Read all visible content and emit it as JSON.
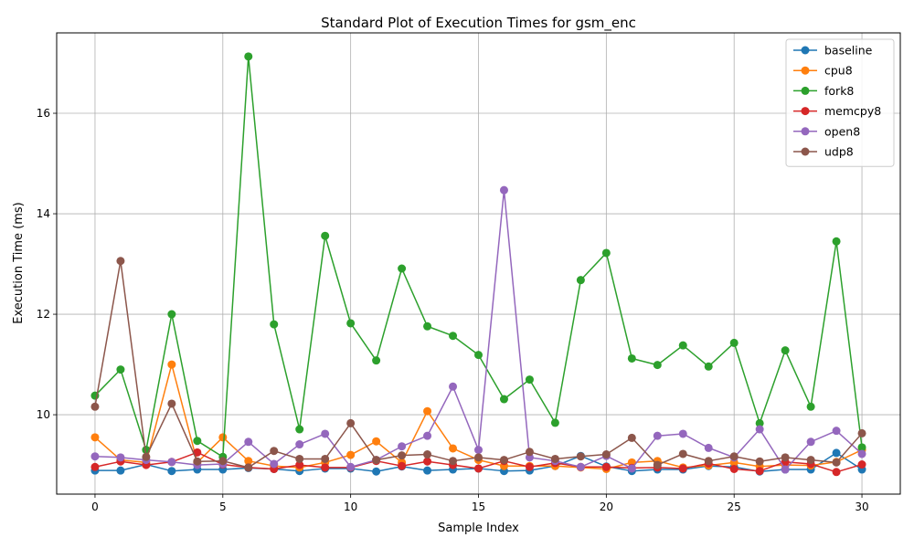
{
  "chart_data": {
    "type": "line",
    "title": "Standard Plot of Execution Times for gsm_enc",
    "xlabel": "Sample Index",
    "ylabel": "Execution Time (ms)",
    "xlim": [
      -1.5,
      31.5
    ],
    "ylim": [
      8.42,
      17.6
    ],
    "xticks": [
      0,
      5,
      10,
      15,
      20,
      25,
      30
    ],
    "yticks": [
      10,
      12,
      14,
      16
    ],
    "grid": true,
    "legend_position": "top-right",
    "x": [
      0,
      1,
      2,
      3,
      4,
      5,
      6,
      7,
      8,
      9,
      10,
      11,
      12,
      13,
      14,
      15,
      16,
      17,
      18,
      19,
      20,
      21,
      22,
      23,
      24,
      25,
      26,
      27,
      28,
      29,
      30
    ],
    "series": [
      {
        "name": "baseline",
        "color": "#1f77b4",
        "values": [
          8.89,
          8.89,
          9.01,
          8.88,
          8.91,
          8.91,
          8.94,
          8.92,
          8.88,
          8.93,
          8.93,
          8.87,
          8.97,
          8.89,
          8.91,
          8.93,
          8.88,
          8.89,
          8.98,
          9.18,
          8.97,
          8.88,
          8.91,
          8.91,
          8.98,
          8.96,
          8.87,
          8.91,
          8.91,
          9.24,
          8.91
        ]
      },
      {
        "name": "cpu8",
        "color": "#ff7f0e",
        "values": [
          9.55,
          9.1,
          9.05,
          11.0,
          9.05,
          9.55,
          9.08,
          8.98,
          8.95,
          9.05,
          9.2,
          9.47,
          9.05,
          10.07,
          9.33,
          9.1,
          8.98,
          8.98,
          8.98,
          8.95,
          8.92,
          9.05,
          9.08,
          8.95,
          8.99,
          9.05,
          8.97,
          9.0,
          8.99,
          9.06,
          9.3
        ]
      },
      {
        "name": "fork8",
        "color": "#2ca02c",
        "values": [
          10.38,
          10.9,
          9.3,
          12.0,
          9.48,
          9.16,
          17.13,
          11.8,
          9.71,
          13.56,
          11.82,
          11.08,
          12.91,
          11.76,
          11.57,
          11.19,
          10.31,
          10.7,
          9.84,
          12.68,
          13.22,
          11.12,
          10.99,
          11.38,
          10.96,
          11.43,
          9.83,
          11.28,
          10.16,
          13.45,
          9.35
        ]
      },
      {
        "name": "memcpy8",
        "color": "#d62728",
        "values": [
          8.96,
          9.07,
          9.0,
          9.06,
          9.25,
          9.01,
          8.95,
          8.92,
          9.0,
          8.95,
          8.95,
          9.08,
          8.98,
          9.07,
          9.0,
          8.93,
          9.08,
          8.96,
          9.04,
          8.96,
          8.96,
          8.94,
          8.95,
          8.93,
          9.03,
          8.92,
          8.88,
          9.06,
          9.02,
          8.86,
          9.01
        ]
      },
      {
        "name": "open8",
        "color": "#9467bd",
        "values": [
          9.17,
          9.15,
          9.1,
          9.06,
          9.0,
          9.02,
          9.46,
          9.02,
          9.41,
          9.62,
          8.96,
          9.1,
          9.37,
          9.58,
          10.56,
          9.3,
          14.47,
          9.15,
          9.08,
          8.96,
          9.18,
          8.93,
          9.58,
          9.62,
          9.34,
          9.15,
          9.71,
          8.91,
          9.46,
          9.68,
          9.22
        ]
      },
      {
        "name": "udp8",
        "color": "#8c564b",
        "values": [
          10.16,
          13.06,
          9.16,
          10.22,
          9.07,
          9.08,
          8.95,
          9.28,
          9.12,
          9.12,
          9.83,
          9.1,
          9.19,
          9.21,
          9.08,
          9.15,
          9.1,
          9.26,
          9.12,
          9.17,
          9.21,
          9.54,
          9.0,
          9.22,
          9.08,
          9.17,
          9.07,
          9.15,
          9.1,
          9.05,
          9.63
        ]
      }
    ]
  }
}
